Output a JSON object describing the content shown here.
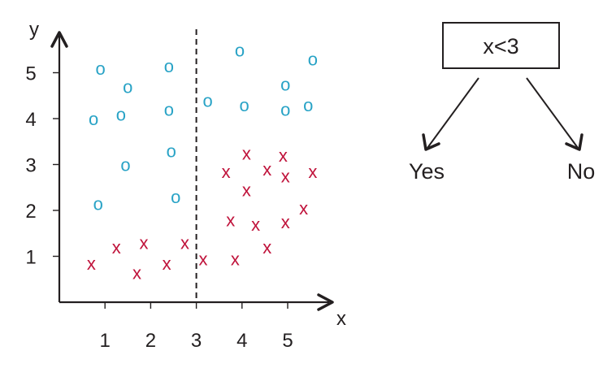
{
  "chart_data": {
    "type": "scatter",
    "xlabel": "x",
    "ylabel": "y",
    "xticks": [
      "1",
      "2",
      "3",
      "4",
      "5"
    ],
    "yticks": [
      "1",
      "2",
      "3",
      "4",
      "5"
    ],
    "xlim": [
      0,
      6
    ],
    "ylim": [
      0,
      6
    ],
    "split": {
      "axis": "x",
      "value": 3,
      "style": "dashed"
    },
    "series": [
      {
        "marker": "o",
        "color": "#29a3c6",
        "points": [
          [
            0.9,
            5.1
          ],
          [
            1.5,
            4.7
          ],
          [
            2.4,
            5.15
          ],
          [
            3.95,
            5.5
          ],
          [
            5.55,
            5.3
          ],
          [
            0.75,
            4.0
          ],
          [
            1.35,
            4.1
          ],
          [
            2.4,
            4.2
          ],
          [
            3.25,
            4.4
          ],
          [
            4.05,
            4.3
          ],
          [
            4.95,
            4.75
          ],
          [
            4.95,
            4.2
          ],
          [
            5.45,
            4.3
          ],
          [
            1.45,
            3.0
          ],
          [
            2.45,
            3.3
          ],
          [
            0.85,
            2.15
          ],
          [
            2.55,
            2.3
          ]
        ]
      },
      {
        "marker": "x",
        "color": "#c0143c",
        "points": [
          [
            0.7,
            0.85
          ],
          [
            1.25,
            1.2
          ],
          [
            1.7,
            0.65
          ],
          [
            1.85,
            1.3
          ],
          [
            2.35,
            0.85
          ],
          [
            2.75,
            1.3
          ],
          [
            3.15,
            0.95
          ],
          [
            3.85,
            0.95
          ],
          [
            4.55,
            1.2
          ],
          [
            3.65,
            2.85
          ],
          [
            4.1,
            3.25
          ],
          [
            4.55,
            2.9
          ],
          [
            4.9,
            3.2
          ],
          [
            4.95,
            2.75
          ],
          [
            5.55,
            2.85
          ],
          [
            4.1,
            2.45
          ],
          [
            3.75,
            1.8
          ],
          [
            4.3,
            1.7
          ],
          [
            4.95,
            1.75
          ],
          [
            5.35,
            2.05
          ]
        ]
      }
    ]
  },
  "tree": {
    "root_label": "x<3",
    "left_leaf": "Yes",
    "right_leaf": "No"
  }
}
